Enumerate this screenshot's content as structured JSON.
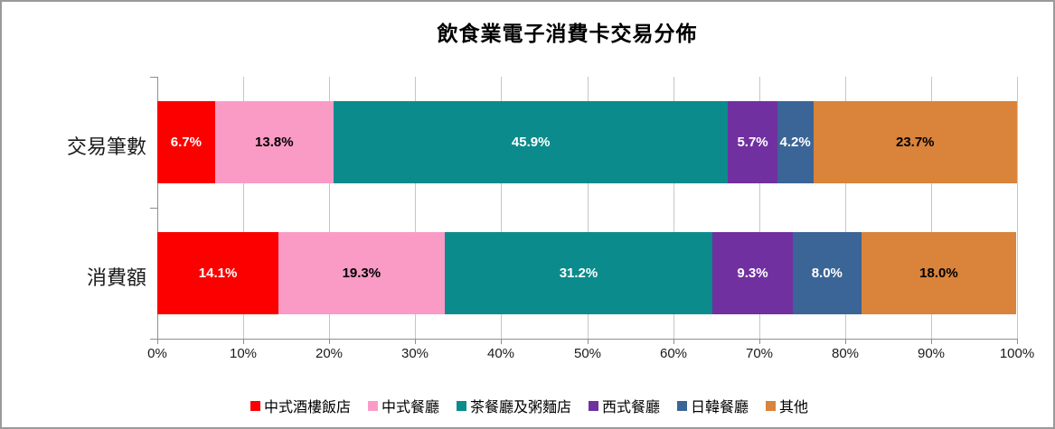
{
  "chart_data": {
    "type": "bar",
    "orientation": "horizontal",
    "stacked": true,
    "title": "飲食業電子消費卡交易分佈",
    "categories": [
      "交易筆數",
      "消費額"
    ],
    "series": [
      {
        "name": "中式酒樓飯店",
        "color": "#fc0000",
        "label_color": "#ffffff",
        "values": [
          6.7,
          14.1
        ]
      },
      {
        "name": "中式餐廳",
        "color": "#fa9bc6",
        "label_color": "#000000",
        "values": [
          13.8,
          19.3
        ]
      },
      {
        "name": "茶餐廳及粥麵店",
        "color": "#0b8b8c",
        "label_color": "#ffffff",
        "values": [
          45.9,
          31.2
        ]
      },
      {
        "name": "西式餐廳",
        "color": "#7030a0",
        "label_color": "#ffffff",
        "values": [
          5.7,
          9.3
        ]
      },
      {
        "name": "日韓餐廳",
        "color": "#3a6596",
        "label_color": "#ffffff",
        "values": [
          4.2,
          8.0
        ]
      },
      {
        "name": "其他",
        "color": "#d9833b",
        "label_color": "#000000",
        "values": [
          23.7,
          18.0
        ]
      }
    ],
    "value_labels": [
      [
        "6.7%",
        "13.8%",
        "45.9%",
        "5.7%",
        "4.2%",
        "23.7%"
      ],
      [
        "14.1%",
        "19.3%",
        "31.2%",
        "9.3%",
        "8.0%",
        "18.0%"
      ]
    ],
    "x_axis": {
      "min": 0,
      "max": 100,
      "tick_labels": [
        "0%",
        "10%",
        "20%",
        "30%",
        "40%",
        "50%",
        "60%",
        "70%",
        "80%",
        "90%",
        "100%"
      ]
    },
    "grid": true,
    "legend_position": "bottom",
    "colors": {
      "gridline": "#c6c6c6",
      "axis": "#8f8f8f",
      "frame_border": "#9a9a9a",
      "background": "#ffffff",
      "text": "#000000"
    }
  }
}
